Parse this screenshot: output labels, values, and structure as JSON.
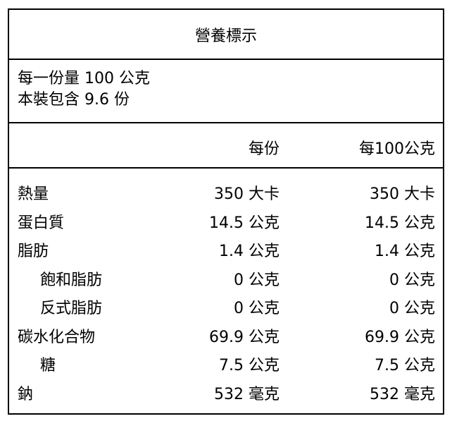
{
  "title": "營養標示",
  "serving": {
    "per_serving": "每一份量 100 公克",
    "servings": "本裝包含  9.6 份"
  },
  "header": {
    "col_per_serving": "每份",
    "col_per_100g": "每100公克"
  },
  "rows": [
    {
      "name": "熱量",
      "per_serving": "350 大卡",
      "per_100g": "350 大卡",
      "indent": false
    },
    {
      "name": "蛋白質",
      "per_serving": "14.5 公克",
      "per_100g": "14.5 公克",
      "indent": false
    },
    {
      "name": "脂肪",
      "per_serving": "1.4 公克",
      "per_100g": "1.4 公克",
      "indent": false
    },
    {
      "name": "飽和脂肪",
      "per_serving": "0 公克",
      "per_100g": "0 公克",
      "indent": true
    },
    {
      "name": "反式脂肪",
      "per_serving": "0 公克",
      "per_100g": "0 公克",
      "indent": true
    },
    {
      "name": "碳水化合物",
      "per_serving": "69.9 公克",
      "per_100g": "69.9 公克",
      "indent": false
    },
    {
      "name": "糖",
      "per_serving": "7.5 公克",
      "per_100g": "7.5 公克",
      "indent": true
    },
    {
      "name": "鈉",
      "per_serving": "532 毫克",
      "per_100g": "532 毫克",
      "indent": false
    }
  ]
}
